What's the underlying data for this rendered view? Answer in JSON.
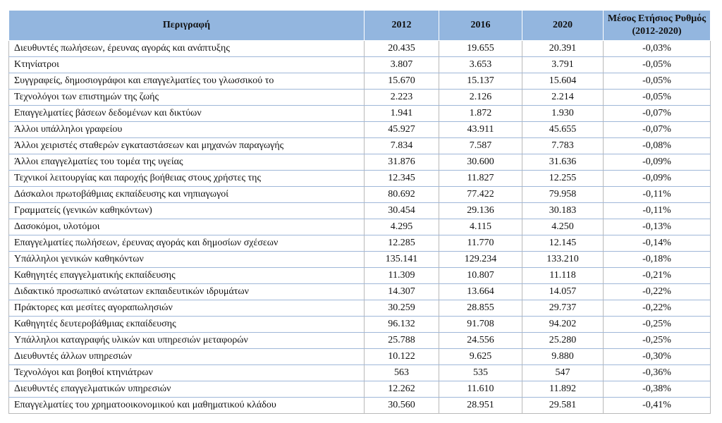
{
  "table": {
    "headers": [
      "Περιγραφή",
      "2012",
      "2016",
      "2020",
      "Μέσος Ετήσιος Ρυθμός (2012-2020)"
    ],
    "rows": [
      [
        "Διευθυντές πωλήσεων, έρευνας αγοράς και ανάπτυξης",
        "20.435",
        "19.655",
        "20.391",
        "-0,03%"
      ],
      [
        "Κτηνίατροι",
        "3.807",
        "3.653",
        "3.791",
        "-0,05%"
      ],
      [
        "Συγγραφείς, δημοσιογράφοι και επαγγελματίες του γλωσσικού το",
        "15.670",
        "15.137",
        "15.604",
        "-0,05%"
      ],
      [
        "Τεχνολόγοι των επιστημών της ζωής",
        "2.223",
        "2.126",
        "2.214",
        "-0,05%"
      ],
      [
        "Επαγγελματίες βάσεων δεδομένων και δικτύων",
        "1.941",
        "1.872",
        "1.930",
        "-0,07%"
      ],
      [
        "Άλλοι υπάλληλοι γραφείου",
        "45.927",
        "43.911",
        "45.655",
        "-0,07%"
      ],
      [
        "Άλλοι χειριστές σταθερών εγκαταστάσεων και μηχανών παραγωγής",
        "7.834",
        "7.587",
        "7.783",
        "-0,08%"
      ],
      [
        "Άλλοι επαγγελματίες του τομέα της υγείας",
        "31.876",
        "30.600",
        "31.636",
        "-0,09%"
      ],
      [
        "Τεχνικοί λειτουργίας και παροχής βοήθειας στους χρήστες της",
        "12.345",
        "11.827",
        "12.255",
        "-0,09%"
      ],
      [
        "Δάσκαλοι πρωτοβάθμιας εκπαίδευσης και νηπιαγωγοί",
        "80.692",
        "77.422",
        "79.958",
        "-0,11%"
      ],
      [
        "Γραμματείς (γενικών καθηκόντων)",
        "30.454",
        "29.136",
        "30.183",
        "-0,11%"
      ],
      [
        "Δασοκόμοι, υλοτόμοι",
        "4.295",
        "4.115",
        "4.250",
        "-0,13%"
      ],
      [
        "Επαγγελματίες πωλήσεων, έρευνας αγοράς και δημοσίων σχέσεων",
        "12.285",
        "11.770",
        "12.145",
        "-0,14%"
      ],
      [
        "Υπάλληλοι γενικών καθηκόντων",
        "135.141",
        "129.234",
        "133.210",
        "-0,18%"
      ],
      [
        "Καθηγητές επαγγελματικής εκπαίδευσης",
        "11.309",
        "10.807",
        "11.118",
        "-0,21%"
      ],
      [
        "Διδακτικό προσωπικό ανώτατων εκπαιδευτικών ιδρυμάτων",
        "14.307",
        "13.664",
        "14.057",
        "-0,22%"
      ],
      [
        "Πράκτορες και μεσίτες αγοραπωλησιών",
        "30.259",
        "28.855",
        "29.737",
        "-0,22%"
      ],
      [
        "Καθηγητές δευτεροβάθμιας εκπαίδευσης",
        "96.132",
        "91.708",
        "94.202",
        "-0,25%"
      ],
      [
        "Υπάλληλοι καταγραφής υλικών και υπηρεσιών μεταφορών",
        "25.788",
        "24.556",
        "25.280",
        "-0,25%"
      ],
      [
        "Διευθυντές άλλων υπηρεσιών",
        "10.122",
        "9.625",
        "9.880",
        "-0,30%"
      ],
      [
        "Τεχνολόγοι και βοηθοί κτηνιάτρων",
        "563",
        "535",
        "547",
        "-0,36%"
      ],
      [
        "Διευθυντές επαγγελματικών υπηρεσιών",
        "12.262",
        "11.610",
        "11.892",
        "-0,38%"
      ],
      [
        "Επαγγελματίες του χρηματοοικονομικού και μαθηματικού κλάδου",
        "30.560",
        "28.951",
        "29.581",
        "-0,41%"
      ]
    ]
  }
}
